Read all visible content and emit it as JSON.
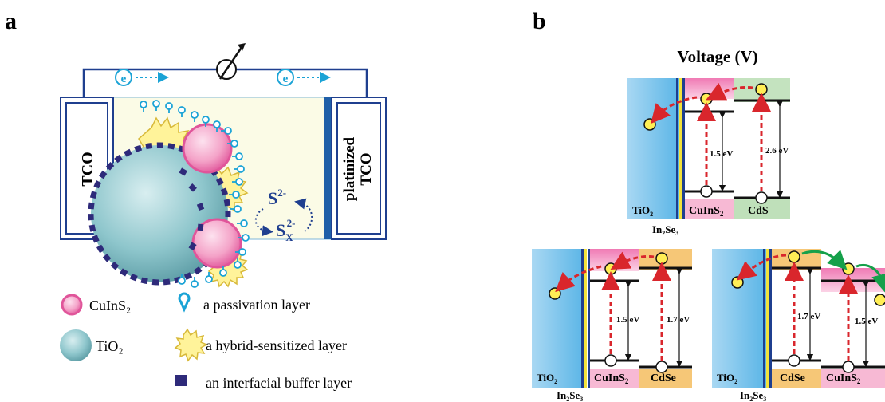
{
  "panel_a": {
    "label": "a",
    "left_electrode": "TCO",
    "right_electrode_line1": "platinized",
    "right_electrode_line2": "TCO",
    "electron_symbol": "e",
    "redox_s": "S",
    "redox_s_charge": "2-",
    "redox_sx": "S",
    "redox_sx_sub": "X",
    "redox_sx_charge": "2-",
    "legend": {
      "cuins2": "CuInS₂",
      "tio2": "TiO₂",
      "passivation": "a passivation layer",
      "hybrid": "a hybrid-sensitized layer",
      "buffer": "an interfacial buffer layer"
    }
  },
  "panel_b": {
    "label": "b",
    "title": "Voltage (V)",
    "top": {
      "mat1": "TiO",
      "mat1_sub": "2",
      "mat2": "CuInS",
      "mat2_sub": "2",
      "mat3": "CdS",
      "gap1": "1.5 eV",
      "gap2": "2.6 eV",
      "buffer": "In",
      "buffer_sub": "2",
      "buffer2": "Se",
      "buffer2_sub": "3"
    },
    "bottom_left": {
      "mat1": "TiO",
      "mat1_sub": "2",
      "mat2": "CuInS",
      "mat2_sub": "2",
      "mat3": "CdSe",
      "gap1": "1.5 eV",
      "gap2": "1.7 eV",
      "buffer": "In",
      "buffer_sub": "2",
      "buffer2": "Se",
      "buffer2_sub": "3"
    },
    "bottom_right": {
      "mat1": "TiO",
      "mat1_sub": "2",
      "mat2": "CdSe",
      "mat3": "CuInS",
      "mat3_sub": "2",
      "gap1": "1.7 eV",
      "gap2": "1.5 eV",
      "buffer": "In",
      "buffer_sub": "2",
      "buffer2": "Se",
      "buffer2_sub": "3"
    }
  },
  "colors": {
    "navy": "#1f3f8f",
    "cyan": "#1aa3d6",
    "pink": "#e0559a",
    "pink_light": "#f5b6d3",
    "yellow": "#ffee55",
    "teal": "#8ec6cc",
    "cream": "#fbfbe6",
    "tio2_blue": "#7fc3ea",
    "cds_green": "#b7dcb3",
    "cdse_orange": "#f6c777",
    "red_arrow": "#d9262c",
    "green_arrow": "#15a04a"
  }
}
